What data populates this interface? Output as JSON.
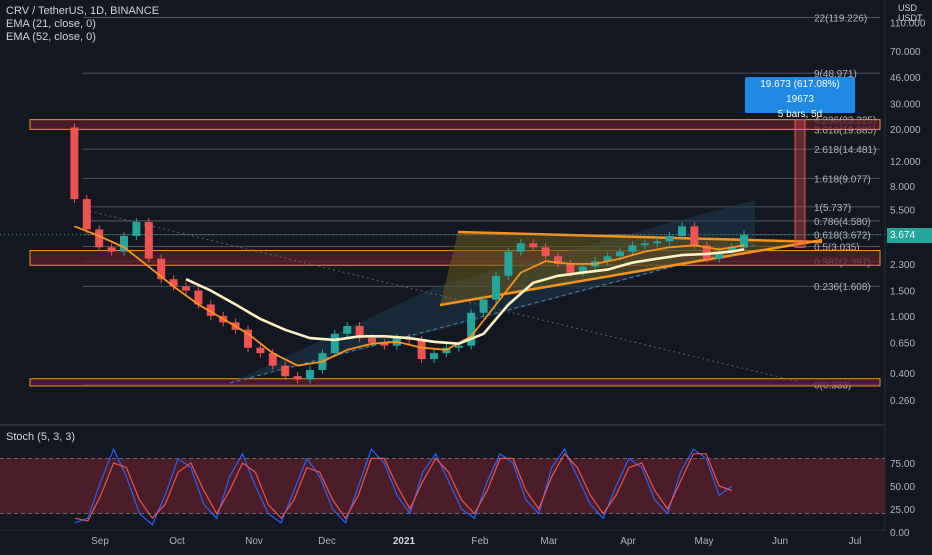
{
  "legend": {
    "symbol": "CRV / TetherUS, 1D, BINANCE",
    "ema21": "EMA (21, close, 0)",
    "ema52": "EMA (52, close, 0)",
    "stoch": "Stoch (5, 3, 3)"
  },
  "currency": {
    "line1": "USD",
    "line2": "USDT"
  },
  "last_price": "3.674",
  "measure_popup": {
    "line1": "19.673 (617.08%) 19673",
    "line2": "5 bars, 5d"
  },
  "colors": {
    "background": "#131722",
    "up": "#26a69a",
    "down": "#ef5350",
    "ema21": "#f7931a",
    "ema52": "#fff2c4",
    "fib_line": "#787b86",
    "zone_fill": "#5a1f2a",
    "zone_border": "#f7931a",
    "channel_fill": "#1e3a4a",
    "triangle_fill": "#6b5a1e",
    "triangle_line": "#f7931a",
    "stoch_k": "#2962ff",
    "stoch_d": "#ef5350"
  },
  "chart_data": [
    {
      "type": "line",
      "name": "price",
      "title": "CRV / TetherUS, 1D, BINANCE",
      "y_scale": "log",
      "y_ticks": [
        "160.000",
        "110.000",
        "70.000",
        "46.000",
        "30.000",
        "20.000",
        "12.000",
        "8.000",
        "5.500",
        "3.674",
        "2.300",
        "1.500",
        "1.000",
        "0.650",
        "0.400",
        "0.260"
      ],
      "x_ticks": [
        "Sep",
        "Oct",
        "Nov",
        "Dec",
        "2021",
        "Feb",
        "Mar",
        "Apr",
        "May",
        "Jun",
        "Jul"
      ],
      "fib_levels": [
        {
          "label": "22(119.226)",
          "value": 119.226
        },
        {
          "label": "9(48.971)",
          "value": 48.971
        },
        {
          "label": "4.236(23.225)",
          "value": 23.225
        },
        {
          "label": "3.618(19.885)",
          "value": 19.885
        },
        {
          "label": "2.618(14.481)",
          "value": 14.481
        },
        {
          "label": "1.618(9.077)",
          "value": 9.077
        },
        {
          "label": "1(5.737)",
          "value": 5.737
        },
        {
          "label": "0.786(4.580)",
          "value": 4.58
        },
        {
          "label": "0.618(3.672)",
          "value": 3.672
        },
        {
          "label": "0.5(3.035)",
          "value": 3.035
        },
        {
          "label": "0.382(2.397)",
          "value": 2.397
        },
        {
          "label": "0.236(1.608)",
          "value": 1.608
        },
        {
          "label": "0(0.333)",
          "value": 0.333
        }
      ],
      "price_path": [
        [
          0,
          20.5
        ],
        [
          1,
          6.5
        ],
        [
          2,
          4.0
        ],
        [
          3,
          3.0
        ],
        [
          4,
          2.8
        ],
        [
          5,
          3.6
        ],
        [
          6,
          4.5
        ],
        [
          7,
          2.5
        ],
        [
          8,
          1.8
        ],
        [
          9,
          1.6
        ],
        [
          10,
          1.5
        ],
        [
          11,
          1.2
        ],
        [
          12,
          1.0
        ],
        [
          13,
          0.9
        ],
        [
          14,
          0.8
        ],
        [
          15,
          0.6
        ],
        [
          16,
          0.55
        ],
        [
          17,
          0.45
        ],
        [
          18,
          0.38
        ],
        [
          19,
          0.36
        ],
        [
          20,
          0.42
        ],
        [
          21,
          0.55
        ],
        [
          22,
          0.75
        ],
        [
          23,
          0.85
        ],
        [
          24,
          0.7
        ],
        [
          25,
          0.65
        ],
        [
          26,
          0.62
        ],
        [
          27,
          0.7
        ],
        [
          28,
          0.68
        ],
        [
          29,
          0.5
        ],
        [
          30,
          0.55
        ],
        [
          31,
          0.6
        ],
        [
          32,
          0.62
        ],
        [
          33,
          1.05
        ],
        [
          34,
          1.3
        ],
        [
          35,
          1.9
        ],
        [
          36,
          2.8
        ],
        [
          37,
          3.2
        ],
        [
          38,
          3.0
        ],
        [
          39,
          2.6
        ],
        [
          40,
          2.3
        ],
        [
          41,
          2.0
        ],
        [
          42,
          2.2
        ],
        [
          43,
          2.4
        ],
        [
          44,
          2.6
        ],
        [
          45,
          2.8
        ],
        [
          46,
          3.1
        ],
        [
          47,
          3.2
        ],
        [
          48,
          3.3
        ],
        [
          49,
          3.6
        ],
        [
          50,
          4.2
        ],
        [
          51,
          3.1
        ],
        [
          52,
          2.5
        ],
        [
          53,
          2.8
        ],
        [
          54,
          3.0
        ],
        [
          55,
          3.674
        ]
      ],
      "ema21_path": [
        [
          1,
          4.2
        ],
        [
          3,
          3.6
        ],
        [
          5,
          3.0
        ],
        [
          7,
          2.2
        ],
        [
          9,
          1.6
        ],
        [
          11,
          1.2
        ],
        [
          13,
          0.95
        ],
        [
          15,
          0.75
        ],
        [
          17,
          0.55
        ],
        [
          19,
          0.45
        ],
        [
          21,
          0.48
        ],
        [
          23,
          0.58
        ],
        [
          25,
          0.64
        ],
        [
          27,
          0.66
        ],
        [
          29,
          0.6
        ],
        [
          31,
          0.58
        ],
        [
          33,
          0.72
        ],
        [
          35,
          1.2
        ],
        [
          37,
          2.0
        ],
        [
          39,
          2.4
        ],
        [
          41,
          2.3
        ],
        [
          43,
          2.3
        ],
        [
          45,
          2.5
        ],
        [
          47,
          2.8
        ],
        [
          49,
          3.0
        ],
        [
          51,
          3.1
        ],
        [
          53,
          2.9
        ],
        [
          55,
          3.1
        ]
      ],
      "ema52_path": [
        [
          10,
          1.8
        ],
        [
          12,
          1.5
        ],
        [
          14,
          1.2
        ],
        [
          16,
          0.95
        ],
        [
          18,
          0.8
        ],
        [
          20,
          0.7
        ],
        [
          22,
          0.68
        ],
        [
          24,
          0.72
        ],
        [
          26,
          0.72
        ],
        [
          28,
          0.7
        ],
        [
          30,
          0.66
        ],
        [
          32,
          0.64
        ],
        [
          34,
          0.75
        ],
        [
          36,
          1.2
        ],
        [
          38,
          1.7
        ],
        [
          40,
          1.9
        ],
        [
          42,
          2.0
        ],
        [
          44,
          2.1
        ],
        [
          46,
          2.35
        ],
        [
          48,
          2.5
        ],
        [
          50,
          2.65
        ],
        [
          52,
          2.7
        ],
        [
          54,
          2.8
        ],
        [
          55,
          2.9
        ]
      ]
    },
    {
      "type": "line",
      "name": "stochastic",
      "title": "Stoch (5, 3, 3)",
      "y_ticks": [
        "75.00",
        "50.00",
        "25.00",
        "0.00"
      ],
      "ylim": [
        0,
        100
      ],
      "upper_band": 80,
      "lower_band": 20,
      "series": [
        {
          "color": "#2962ff",
          "values": [
            10,
            15,
            55,
            90,
            60,
            20,
            8,
            40,
            80,
            70,
            30,
            15,
            60,
            85,
            50,
            20,
            10,
            45,
            80,
            60,
            25,
            10,
            50,
            90,
            75,
            40,
            20,
            65,
            85,
            55,
            25,
            15,
            55,
            85,
            75,
            35,
            20,
            70,
            90,
            60,
            30,
            15,
            50,
            80,
            70,
            35,
            20,
            65,
            90,
            80,
            40,
            50
          ]
        },
        {
          "color": "#ef5350",
          "values": [
            15,
            12,
            40,
            75,
            70,
            35,
            15,
            30,
            65,
            75,
            45,
            20,
            45,
            75,
            65,
            30,
            15,
            35,
            70,
            65,
            35,
            15,
            40,
            80,
            80,
            50,
            25,
            55,
            80,
            65,
            35,
            20,
            45,
            80,
            80,
            45,
            25,
            60,
            85,
            70,
            40,
            20,
            40,
            70,
            75,
            45,
            25,
            55,
            85,
            85,
            50,
            45
          ]
        }
      ]
    }
  ]
}
